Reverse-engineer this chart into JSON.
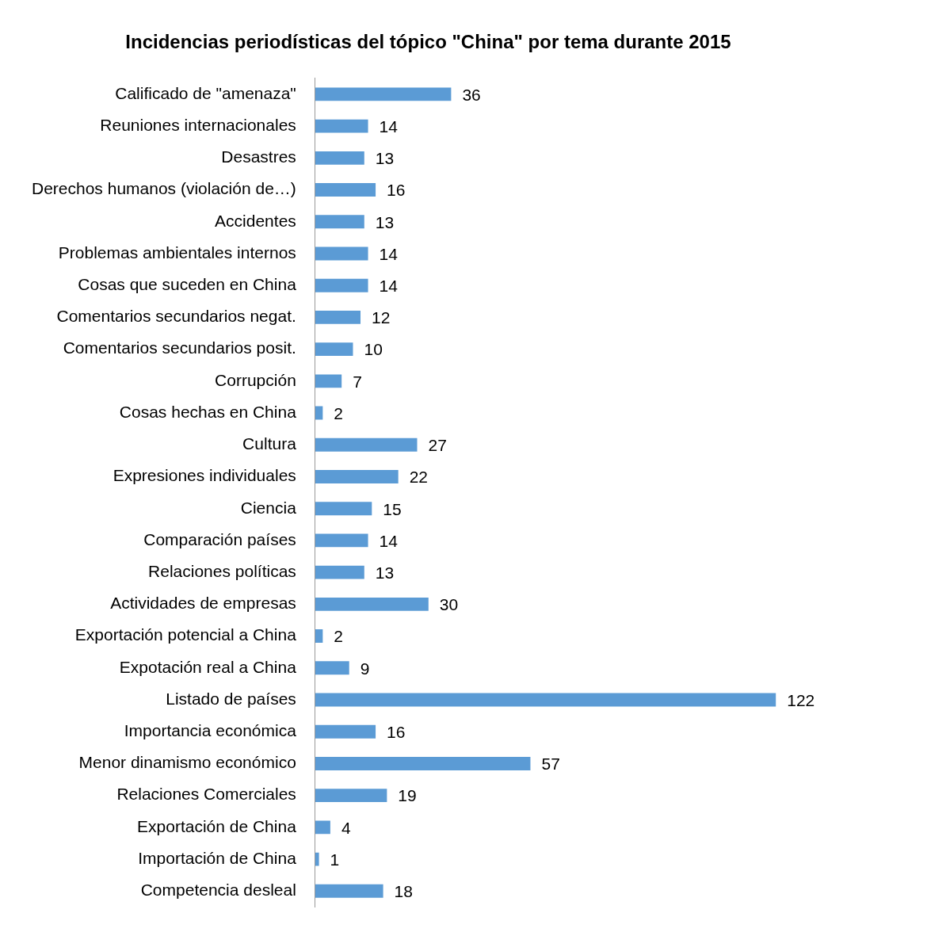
{
  "chart_data": {
    "type": "bar",
    "orientation": "horizontal",
    "title": "Incidencias periodísticas del tópico \"China\" por tema durante 2015",
    "categories": [
      "Calificado de \"amenaza\"",
      "Reuniones internacionales",
      "Desastres",
      "Derechos humanos (violación de…)",
      "Accidentes",
      "Problemas ambientales internos",
      "Cosas que suceden en China",
      "Comentarios secundarios negat.",
      "Comentarios secundarios posit.",
      "Corrupción",
      "Cosas hechas en China",
      "Cultura",
      "Expresiones individuales",
      "Ciencia",
      "Comparación países",
      "Relaciones políticas",
      "Actividades de empresas",
      "Exportación potencial a China",
      "Expotación real a China",
      "Listado de países",
      "Importancia económica",
      "Menor dinamismo económico",
      "Relaciones Comerciales",
      "Exportación de China",
      "Importación de China",
      "Competencia desleal"
    ],
    "values": [
      36,
      14,
      13,
      16,
      13,
      14,
      14,
      12,
      10,
      7,
      2,
      27,
      22,
      15,
      14,
      13,
      30,
      2,
      9,
      122,
      16,
      57,
      19,
      4,
      1,
      18
    ],
    "color": "#5b9bd5",
    "data_labels": true,
    "legend": false
  }
}
